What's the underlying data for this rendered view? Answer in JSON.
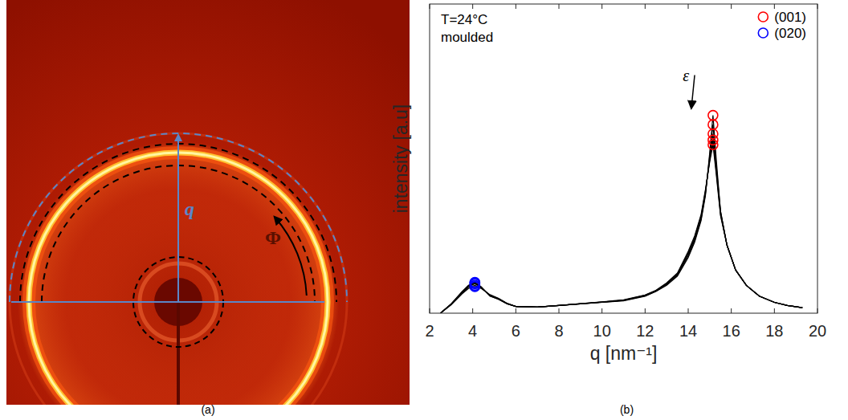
{
  "panel_labels": [
    "(a)",
    "(b)"
  ],
  "image": {
    "q_label": "q",
    "phi_label": "Φ"
  },
  "chart_data": {
    "type": "line",
    "xlabel": "q [nm⁻¹]",
    "ylabel": "intensity [a.u]",
    "annotations": [
      "T=24°C",
      "moulded",
      "ε"
    ],
    "xlim": [
      2,
      20
    ],
    "xticks": [
      2,
      4,
      6,
      8,
      10,
      12,
      14,
      16,
      18,
      20
    ],
    "ylim": [
      0,
      1
    ],
    "yticks": [],
    "tick_labels": "x",
    "grid": false,
    "legend": "upper right",
    "x": [
      2.5,
      3,
      3.5,
      3.8,
      4.1,
      4.4,
      4.8,
      5.2,
      5.6,
      6,
      7,
      8,
      9,
      10,
      11,
      12,
      12.5,
      13,
      13.5,
      14,
      14.3,
      14.6,
      14.8,
      15,
      15.15,
      15.3,
      15.5,
      15.8,
      16.2,
      16.7,
      17.3,
      18,
      18.6,
      19.3
    ],
    "series": [
      {
        "type": "line",
        "color": "#000000",
        "line_style": "solid",
        "values": [
          0.0,
          0.03,
          0.07,
          0.09,
          0.1,
          0.085,
          0.055,
          0.045,
          0.03,
          0.022,
          0.02,
          0.025,
          0.03,
          0.035,
          0.04,
          0.055,
          0.07,
          0.09,
          0.12,
          0.18,
          0.23,
          0.3,
          0.38,
          0.52,
          0.64,
          0.5,
          0.33,
          0.22,
          0.14,
          0.09,
          0.055,
          0.035,
          0.025,
          0.018
        ]
      },
      {
        "type": "line",
        "color": "#000000",
        "line_style": "solid",
        "values": [
          0.0,
          0.03,
          0.068,
          0.088,
          0.098,
          0.084,
          0.056,
          0.045,
          0.03,
          0.022,
          0.02,
          0.025,
          0.03,
          0.035,
          0.041,
          0.056,
          0.071,
          0.092,
          0.123,
          0.185,
          0.235,
          0.305,
          0.385,
          0.51,
          0.61,
          0.48,
          0.33,
          0.22,
          0.14,
          0.09,
          0.055,
          0.035,
          0.025,
          0.018
        ]
      },
      {
        "type": "line",
        "color": "#000000",
        "line_style": "solid",
        "values": [
          0.0,
          0.029,
          0.066,
          0.086,
          0.095,
          0.083,
          0.057,
          0.046,
          0.031,
          0.022,
          0.02,
          0.025,
          0.03,
          0.036,
          0.042,
          0.057,
          0.072,
          0.094,
          0.126,
          0.19,
          0.24,
          0.31,
          0.39,
          0.5,
          0.58,
          0.47,
          0.325,
          0.22,
          0.14,
          0.09,
          0.055,
          0.035,
          0.025,
          0.018
        ]
      },
      {
        "type": "line",
        "color": "#000000",
        "line_style": "solid",
        "values": [
          0.0,
          0.028,
          0.064,
          0.083,
          0.09,
          0.081,
          0.058,
          0.047,
          0.031,
          0.022,
          0.02,
          0.025,
          0.031,
          0.036,
          0.042,
          0.058,
          0.073,
          0.096,
          0.128,
          0.195,
          0.245,
          0.315,
          0.395,
          0.495,
          0.56,
          0.46,
          0.32,
          0.22,
          0.14,
          0.09,
          0.055,
          0.035,
          0.025,
          0.018
        ]
      },
      {
        "type": "line",
        "color": "#000000",
        "line_style": "solid",
        "values": [
          0.0,
          0.027,
          0.062,
          0.08,
          0.086,
          0.08,
          0.06,
          0.048,
          0.032,
          0.022,
          0.02,
          0.025,
          0.031,
          0.037,
          0.043,
          0.059,
          0.074,
          0.098,
          0.13,
          0.2,
          0.25,
          0.32,
          0.4,
          0.49,
          0.545,
          0.45,
          0.315,
          0.22,
          0.14,
          0.09,
          0.055,
          0.035,
          0.025,
          0.018
        ]
      },
      {
        "name": "(001)",
        "type": "scatter",
        "color": "#ff0000",
        "marker": "circle",
        "line_style": "none",
        "x": [
          15.15,
          15.15,
          15.15,
          15.15,
          15.15
        ],
        "values": [
          0.64,
          0.61,
          0.58,
          0.56,
          0.545
        ]
      },
      {
        "name": "(020)",
        "type": "scatter",
        "color": "#0000ff",
        "marker": "circle",
        "line_style": "none",
        "x": [
          4.1,
          4.1,
          4.1,
          4.1,
          4.1
        ],
        "values": [
          0.1,
          0.098,
          0.095,
          0.09,
          0.086
        ]
      }
    ]
  }
}
